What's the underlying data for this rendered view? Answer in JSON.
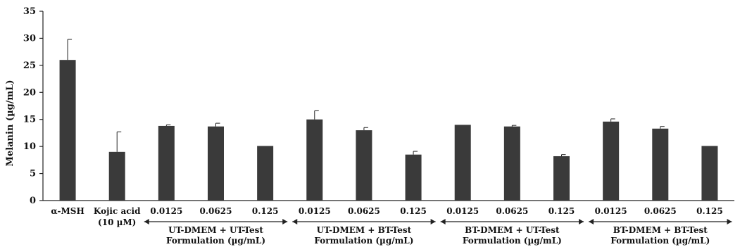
{
  "chart_data": {
    "type": "bar",
    "title": "",
    "xlabel": "",
    "ylabel": "Melanin (µg/mL)",
    "ylim": [
      0,
      35
    ],
    "yticks": [
      0,
      5,
      10,
      15,
      20,
      25,
      30,
      35
    ],
    "grid": false,
    "bar_color": "#3a3a3a",
    "categories": [
      "α-MSH",
      "Kojic acid (10 µM)",
      "0.0125",
      "0.0625",
      "0.125",
      "0.0125",
      "0.0625",
      "0.125",
      "0.0125",
      "0.0625",
      "0.125",
      "0.0125",
      "0.0625",
      "0.125"
    ],
    "category_lines": [
      [
        "α-MSH"
      ],
      [
        "Kojic acid",
        "(10 µM)"
      ],
      [
        "0.0125"
      ],
      [
        "0.0625"
      ],
      [
        "0.125"
      ],
      [
        "0.0125"
      ],
      [
        "0.0625"
      ],
      [
        "0.125"
      ],
      [
        "0.0125"
      ],
      [
        "0.0625"
      ],
      [
        "0.125"
      ],
      [
        "0.0125"
      ],
      [
        "0.0625"
      ],
      [
        "0.125"
      ]
    ],
    "values": [
      26.0,
      9.0,
      13.8,
      13.7,
      10.1,
      15.0,
      13.0,
      8.5,
      14.0,
      13.7,
      8.2,
      14.6,
      13.3,
      10.1
    ],
    "errors": [
      3.8,
      3.7,
      0.2,
      0.6,
      0,
      1.6,
      0.5,
      0.6,
      0,
      0.2,
      0.3,
      0.5,
      0.4,
      0
    ],
    "groups": [
      {
        "lines": [
          "UT-DMEM + UT-Test",
          "Formulation (µg/mL)"
        ],
        "start": 2,
        "end": 4
      },
      {
        "lines": [
          "UT-DMEM + BT-Test",
          "Formulation (µg/mL)"
        ],
        "start": 5,
        "end": 7
      },
      {
        "lines": [
          "BT-DMEM + UT-Test",
          "Formulation (µg/mL)"
        ],
        "start": 8,
        "end": 10
      },
      {
        "lines": [
          "BT-DMEM + BT-Test",
          "Formulation (µg/mL)"
        ],
        "start": 11,
        "end": 13
      }
    ]
  }
}
